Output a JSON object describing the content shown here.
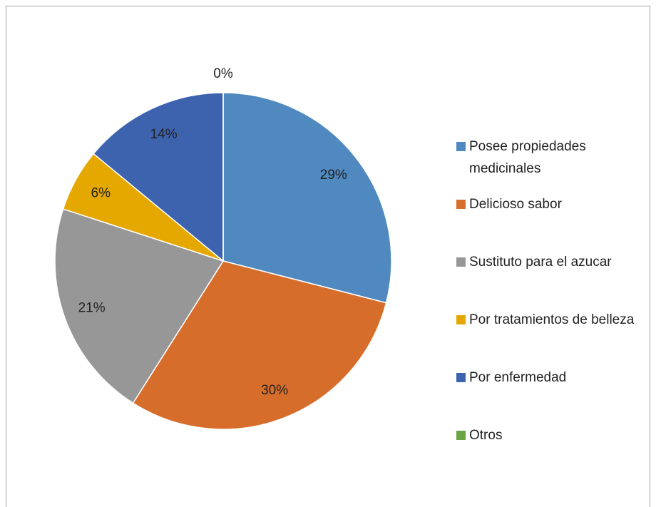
{
  "chart_data": {
    "type": "pie",
    "categories": [
      "Posee propiedades medicinales",
      "Delicioso sabor",
      "Sustituto para el azucar",
      "Por tratamientos de belleza",
      "Por enfermedad",
      "Otros"
    ],
    "values": [
      29,
      30,
      21,
      6,
      14,
      0
    ],
    "value_labels": [
      "29%",
      "30%",
      "21%",
      "6%",
      "14%",
      "0%"
    ],
    "colors": [
      "#4f89c0",
      "#d66d2b",
      "#979797",
      "#e5a800",
      "#3d63af",
      "#6ba444"
    ],
    "legend": "right"
  }
}
